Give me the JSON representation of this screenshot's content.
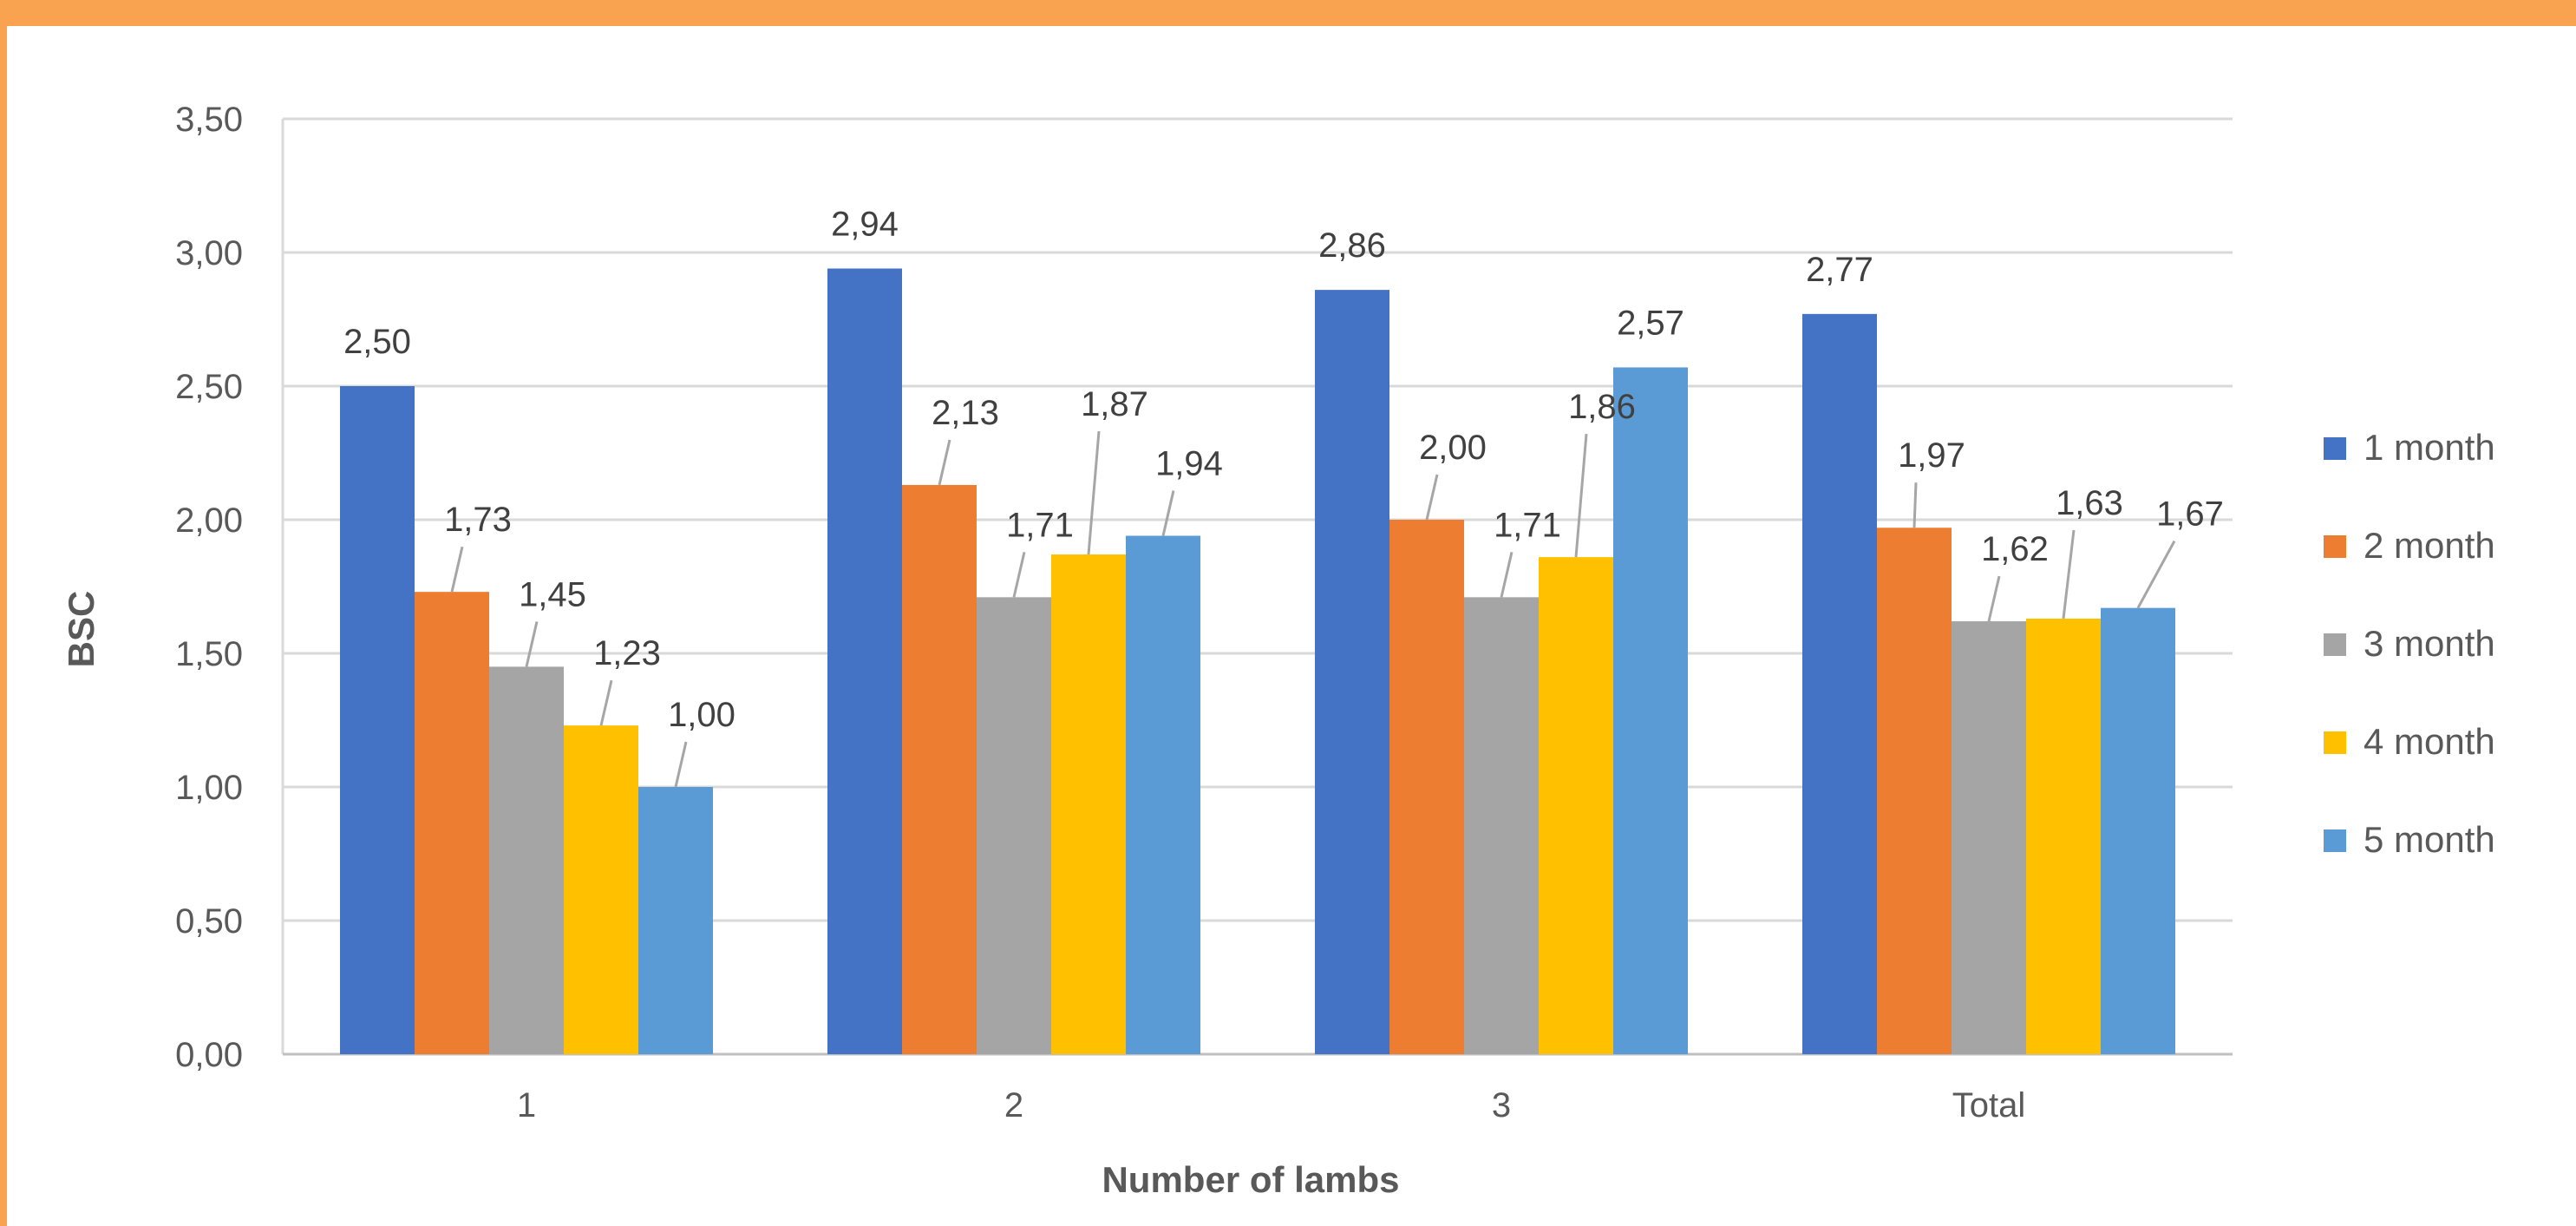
{
  "chart_data": {
    "type": "bar",
    "title": "",
    "xlabel": "Number of lambs",
    "ylabel": "BSC",
    "categories": [
      "1",
      "2",
      "3",
      "Total"
    ],
    "ylim": [
      0,
      3.5
    ],
    "yticks": [
      "0,00",
      "0,50",
      "1,00",
      "1,50",
      "2,00",
      "2,50",
      "3,00",
      "3,50"
    ],
    "grid": true,
    "legend_position": "right",
    "series": [
      {
        "name": "1 month",
        "color": "#4472c4",
        "values": [
          2.5,
          2.94,
          2.86,
          2.77
        ],
        "labels": [
          "2,50",
          "2,94",
          "2,86",
          "2,77"
        ]
      },
      {
        "name": "2 month",
        "color": "#ed7d31",
        "values": [
          1.73,
          2.13,
          2.0,
          1.97
        ],
        "labels": [
          "1,73",
          "2,13",
          "2,00",
          "1,97"
        ]
      },
      {
        "name": "3 month",
        "color": "#a5a5a5",
        "values": [
          1.45,
          1.71,
          1.71,
          1.62
        ],
        "labels": [
          "1,45",
          "1,71",
          "1,71",
          "1,62"
        ]
      },
      {
        "name": "4 month",
        "color": "#ffc000",
        "values": [
          1.23,
          1.87,
          1.86,
          1.63
        ],
        "labels": [
          "1,23",
          "1,87",
          "1,86",
          "1,63"
        ]
      },
      {
        "name": "5 month",
        "color": "#5b9bd5",
        "values": [
          1.0,
          1.94,
          2.57,
          1.67
        ],
        "labels": [
          "1,00",
          "1,94",
          "2,57",
          "1,67"
        ]
      }
    ]
  }
}
